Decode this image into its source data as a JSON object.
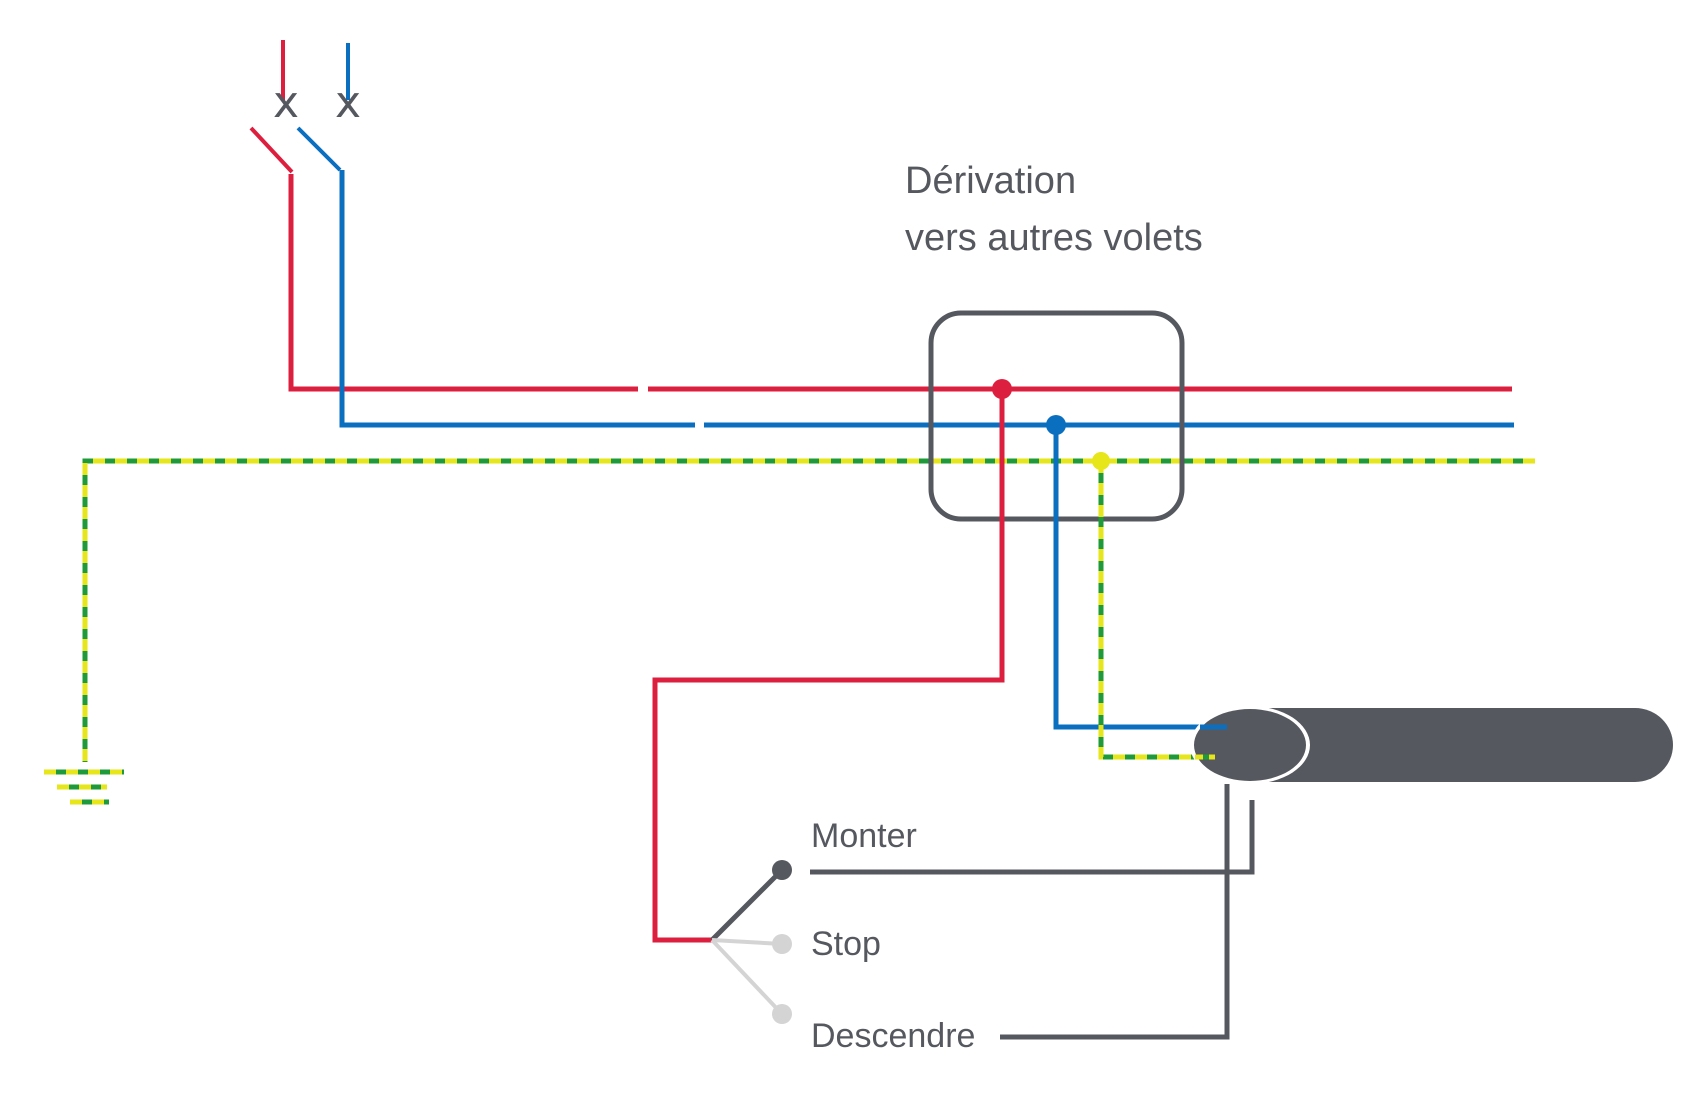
{
  "title": {
    "line1": "Dérivation",
    "line2": "vers autres volets"
  },
  "breaker": {
    "phase_mark": "x",
    "neutral_mark": "x"
  },
  "switch_positions": {
    "up": "Monter",
    "stop": "Stop",
    "down": "Descendre"
  },
  "colors": {
    "phase": "#dd1f3f",
    "neutral": "#0a6fbf",
    "earth_green": "#1e9a3a",
    "earth_yellow": "#e6e61a",
    "dark": "#56585f",
    "inactive": "#d4d4d4"
  },
  "icons": {
    "breaker": "circuit-breaker-icon",
    "ground": "ground-symbol-icon",
    "motor": "shutter-motor-icon",
    "junction_box": "junction-box-icon",
    "switch": "three-position-switch-icon"
  }
}
